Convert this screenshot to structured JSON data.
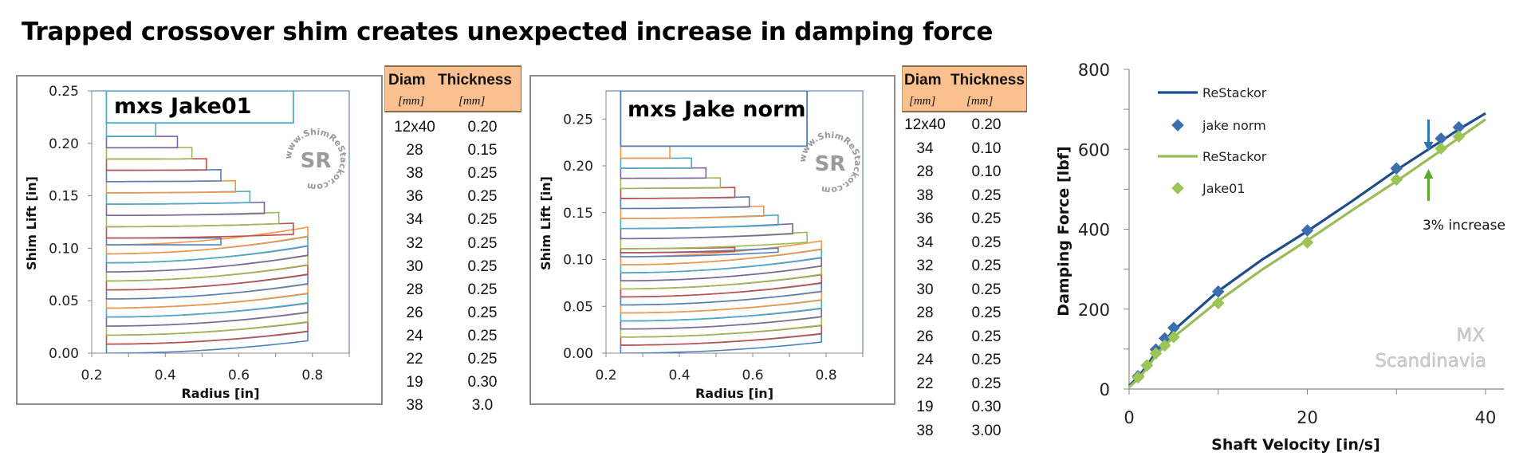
{
  "title": "Trapped crossover shim creates unexpected increase in damping force",
  "colors": {
    "shim_cycle": [
      "#4F81BD",
      "#C0504D",
      "#9BBB59",
      "#8064A2",
      "#4BACC6",
      "#F79646"
    ],
    "restackor_norm": "#1F4E8C",
    "jake_norm_marker": "#3C6EAE",
    "restackor_jake01": "#9BBB59",
    "jake01_marker": "#9BC657",
    "table_header": "#FAC090"
  },
  "watermark_sr": {
    "ring_text": "www.ShimReStackor.com",
    "center_text": "SR"
  },
  "table_jake01": {
    "headers": [
      "Diam",
      "Thickness"
    ],
    "units": [
      "[mm]",
      "[mm]"
    ],
    "rows": [
      [
        "12x40",
        "0.20"
      ],
      [
        "28",
        "0.15"
      ],
      [
        "38",
        "0.25"
      ],
      [
        "36",
        "0.25"
      ],
      [
        "34",
        "0.25"
      ],
      [
        "32",
        "0.25"
      ],
      [
        "30",
        "0.25"
      ],
      [
        "28",
        "0.25"
      ],
      [
        "26",
        "0.25"
      ],
      [
        "24",
        "0.25"
      ],
      [
        "22",
        "0.25"
      ],
      [
        "19",
        "0.30"
      ],
      [
        "38",
        "3.0"
      ]
    ]
  },
  "table_norm": {
    "headers": [
      "Diam",
      "Thickness"
    ],
    "units": [
      "[mm]",
      "[mm]"
    ],
    "rows": [
      [
        "12x40",
        "0.20"
      ],
      [
        "34",
        "0.10"
      ],
      [
        "28",
        "0.10"
      ],
      [
        "38",
        "0.25"
      ],
      [
        "36",
        "0.25"
      ],
      [
        "34",
        "0.25"
      ],
      [
        "32",
        "0.25"
      ],
      [
        "30",
        "0.25"
      ],
      [
        "28",
        "0.25"
      ],
      [
        "26",
        "0.25"
      ],
      [
        "24",
        "0.25"
      ],
      [
        "22",
        "0.25"
      ],
      [
        "19",
        "0.30"
      ],
      [
        "38",
        "3.00"
      ]
    ]
  },
  "chart_data": [
    {
      "type": "line",
      "title": "mxs Jake01",
      "xlabel": "Radius [in]",
      "ylabel": "Shim Lift [in]",
      "xlim": [
        0.2,
        0.9
      ],
      "ylim": [
        0,
        0.25
      ],
      "xticks": [
        "0.2",
        "0.4",
        "0.6",
        "0.8"
      ],
      "yticks": [
        "0.00",
        "0.05",
        "0.10",
        "0.15",
        "0.20",
        "0.25"
      ],
      "inner_radius_in": 0.24,
      "clamp_lift_in": 0.2195,
      "shims": [
        {
          "diam_mm": 40,
          "thick_mm": 0.2,
          "count": 12,
          "tip_deflection_in": [
            0.012,
            0.017
          ]
        },
        {
          "diam_mm": 28,
          "thick_mm": 0.15,
          "count": 1,
          "tip_deflection_in": [
            0.0,
            0.0
          ]
        },
        {
          "diam_mm": 38,
          "thick_mm": 0.25,
          "count": 1,
          "tip_deflection_in": [
            0.004,
            0.004
          ]
        },
        {
          "diam_mm": 36,
          "thick_mm": 0.25,
          "count": 1,
          "tip_deflection_in": [
            0.004,
            0.004
          ]
        },
        {
          "diam_mm": 34,
          "thick_mm": 0.25,
          "count": 1,
          "tip_deflection_in": [
            0.003,
            0.003
          ]
        },
        {
          "diam_mm": 32,
          "thick_mm": 0.25,
          "count": 1,
          "tip_deflection_in": [
            0.003,
            0.003
          ]
        },
        {
          "diam_mm": 30,
          "thick_mm": 0.25,
          "count": 1,
          "tip_deflection_in": [
            0.002,
            0.002
          ]
        },
        {
          "diam_mm": 28,
          "thick_mm": 0.25,
          "count": 1,
          "tip_deflection_in": [
            0.002,
            0.002
          ]
        },
        {
          "diam_mm": 26,
          "thick_mm": 0.25,
          "count": 1,
          "tip_deflection_in": [
            0.001,
            0.001
          ]
        },
        {
          "diam_mm": 24,
          "thick_mm": 0.25,
          "count": 1,
          "tip_deflection_in": [
            0.001,
            0.001
          ]
        },
        {
          "diam_mm": 22,
          "thick_mm": 0.25,
          "count": 1,
          "tip_deflection_in": [
            0.0,
            0.0
          ]
        },
        {
          "diam_mm": 19,
          "thick_mm": 0.3,
          "count": 1,
          "tip_deflection_in": [
            0.0,
            0.0
          ]
        }
      ],
      "clamp": {
        "diam_mm": 38,
        "thick_mm": 3.0
      }
    },
    {
      "type": "line",
      "title": "mxs Jake norm",
      "xlabel": "Radius [in]",
      "ylabel": "Shim Lift [in]",
      "xlim": [
        0.2,
        0.9
      ],
      "ylim": [
        0,
        0.28
      ],
      "xticks": [
        "0.2",
        "0.4",
        "0.6",
        "0.8"
      ],
      "yticks": [
        "0.00",
        "0.05",
        "0.10",
        "0.15",
        "0.20",
        "0.25"
      ],
      "inner_radius_in": 0.24,
      "clamp_lift_in": 0.221,
      "shims": [
        {
          "diam_mm": 40,
          "thick_mm": 0.2,
          "count": 12,
          "tip_deflection_in": [
            0.012,
            0.017
          ]
        },
        {
          "diam_mm": 34,
          "thick_mm": 0.1,
          "count": 1,
          "tip_deflection_in": [
            0.008,
            0.008
          ]
        },
        {
          "diam_mm": 28,
          "thick_mm": 0.1,
          "count": 1,
          "tip_deflection_in": [
            0.004,
            0.004
          ]
        },
        {
          "diam_mm": 38,
          "thick_mm": 0.25,
          "count": 1,
          "tip_deflection_in": [
            0.008,
            0.008
          ]
        },
        {
          "diam_mm": 36,
          "thick_mm": 0.25,
          "count": 1,
          "tip_deflection_in": [
            0.007,
            0.007
          ]
        },
        {
          "diam_mm": 34,
          "thick_mm": 0.25,
          "count": 1,
          "tip_deflection_in": [
            0.006,
            0.006
          ]
        },
        {
          "diam_mm": 32,
          "thick_mm": 0.25,
          "count": 1,
          "tip_deflection_in": [
            0.005,
            0.005
          ]
        },
        {
          "diam_mm": 30,
          "thick_mm": 0.25,
          "count": 1,
          "tip_deflection_in": [
            0.004,
            0.004
          ]
        },
        {
          "diam_mm": 28,
          "thick_mm": 0.25,
          "count": 1,
          "tip_deflection_in": [
            0.003,
            0.003
          ]
        },
        {
          "diam_mm": 26,
          "thick_mm": 0.25,
          "count": 1,
          "tip_deflection_in": [
            0.002,
            0.002
          ]
        },
        {
          "diam_mm": 24,
          "thick_mm": 0.25,
          "count": 1,
          "tip_deflection_in": [
            0.002,
            0.002
          ]
        },
        {
          "diam_mm": 22,
          "thick_mm": 0.25,
          "count": 1,
          "tip_deflection_in": [
            0.001,
            0.001
          ]
        },
        {
          "diam_mm": 19,
          "thick_mm": 0.3,
          "count": 1,
          "tip_deflection_in": [
            0.0,
            0.0
          ]
        }
      ],
      "clamp": {
        "diam_mm": 38,
        "thick_mm": 3.0
      }
    },
    {
      "type": "scatter",
      "title": "",
      "xlabel": "Shaft Velocity [in/s]",
      "ylabel": "Damping Force [lbf]",
      "xlim": [
        0,
        42
      ],
      "ylim": [
        0,
        800
      ],
      "xticks": [
        "0",
        "20",
        "40"
      ],
      "yticks": [
        "0",
        "200",
        "400",
        "600",
        "800"
      ],
      "legend_position": "top-left",
      "series": [
        {
          "name": "ReStackor",
          "kind": "line",
          "color_key": "restackor_norm",
          "x": [
            0,
            1,
            2,
            3,
            4,
            5,
            10,
            15,
            20,
            25,
            30,
            35,
            37,
            40
          ],
          "y": [
            8,
            30,
            58,
            92,
            120,
            147,
            245,
            325,
            395,
            470,
            548,
            620,
            650,
            690
          ]
        },
        {
          "name": "jake norm",
          "kind": "marker",
          "color_key": "jake_norm_marker",
          "x": [
            1,
            2,
            3,
            4,
            5,
            10,
            20,
            30,
            35,
            37
          ],
          "y": [
            32,
            59,
            99,
            127,
            153,
            244,
            397,
            552,
            627,
            655
          ]
        },
        {
          "name": "ReStackor",
          "kind": "line",
          "color_key": "restackor_jake01",
          "x": [
            0,
            1,
            2,
            3,
            4,
            5,
            10,
            15,
            20,
            25,
            30,
            35,
            37,
            40
          ],
          "y": [
            5,
            25,
            52,
            84,
            108,
            130,
            220,
            300,
            372,
            447,
            520,
            597,
            628,
            675
          ]
        },
        {
          "name": "Jake01",
          "kind": "marker",
          "color_key": "jake01_marker",
          "x": [
            1,
            2,
            3,
            4,
            5,
            10,
            20,
            30,
            35,
            37
          ],
          "y": [
            29,
            59,
            89,
            109,
            130,
            215,
            367,
            524,
            602,
            632
          ]
        }
      ],
      "annotation": {
        "text": "3% increase",
        "at_velocity": 33.6
      },
      "watermark": [
        "MX",
        "Scandinavia"
      ]
    }
  ]
}
